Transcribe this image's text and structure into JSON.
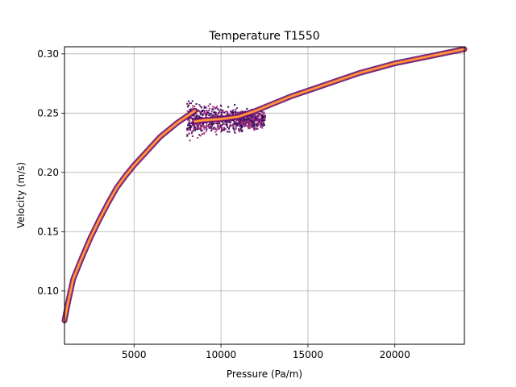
{
  "chart_data": {
    "type": "heatmap",
    "title": "Temperature T1550",
    "xlabel": "Pressure (Pa/m)",
    "ylabel": "Velocity (m/s)",
    "xlim": [
      1000,
      24000
    ],
    "ylim": [
      0.055,
      0.306
    ],
    "xticks": [
      5000,
      10000,
      15000,
      20000
    ],
    "xtick_labels": [
      "5000",
      "10000",
      "15000",
      "20000"
    ],
    "yticks": [
      0.1,
      0.15,
      0.2,
      0.25,
      0.3
    ],
    "ytick_labels": [
      "0.10",
      "0.15",
      "0.20",
      "0.25",
      "0.30"
    ],
    "grid": true,
    "colormap": "inferno",
    "density_ridge": {
      "x": [
        1000,
        1200,
        1500,
        2000,
        2500,
        3000,
        3500,
        4000,
        4500,
        5000,
        5500,
        6000,
        6500,
        7000,
        7500,
        8000,
        8500
      ],
      "y": [
        0.075,
        0.09,
        0.11,
        0.128,
        0.145,
        0.16,
        0.174,
        0.187,
        0.197,
        0.206,
        0.214,
        0.222,
        0.23,
        0.236,
        0.242,
        0.247,
        0.252
      ]
    },
    "upper_branch": {
      "x": [
        8500,
        9000,
        10000,
        11000,
        12000,
        13000,
        14000,
        15000,
        16000,
        17000,
        18000,
        19000,
        20000,
        21000,
        22000,
        23000,
        24000
      ],
      "y": [
        0.243,
        0.244,
        0.245,
        0.247,
        0.252,
        0.258,
        0.264,
        0.269,
        0.274,
        0.279,
        0.284,
        0.288,
        0.292,
        0.295,
        0.298,
        0.301,
        0.304
      ]
    },
    "scatter_cloud": {
      "x_range": [
        8000,
        12500
      ],
      "y_range": [
        0.228,
        0.262
      ]
    }
  }
}
